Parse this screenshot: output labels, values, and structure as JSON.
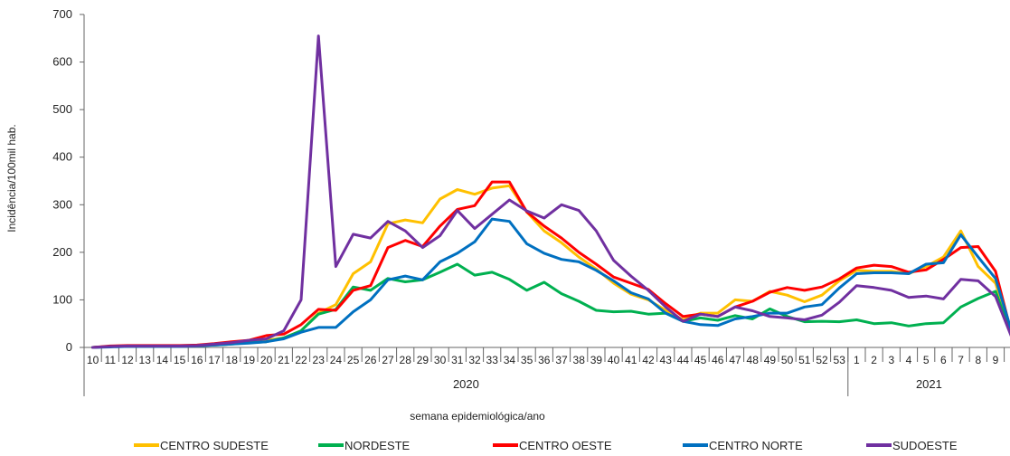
{
  "chart_data": {
    "type": "line",
    "ylabel": "Incidência/100mil hab.",
    "xlabel": "semana epidemiológica/ano",
    "ylim": [
      0,
      700
    ],
    "yticks": [
      0,
      100,
      200,
      300,
      400,
      500,
      600,
      700
    ],
    "grid": false,
    "legend_position": "bottom",
    "years": [
      {
        "label": "2020",
        "weeks": [
          "10",
          "11",
          "12",
          "13",
          "14",
          "15",
          "16",
          "17",
          "18",
          "19",
          "20",
          "21",
          "22",
          "23",
          "24",
          "25",
          "26",
          "27",
          "28",
          "29",
          "30",
          "31",
          "32",
          "33",
          "34",
          "35",
          "36",
          "37",
          "38",
          "39",
          "40",
          "41",
          "42",
          "43",
          "44",
          "45",
          "46",
          "47",
          "48",
          "49",
          "50",
          "51",
          "52",
          "53"
        ]
      },
      {
        "label": "2021",
        "weeks": [
          "1",
          "2",
          "3",
          "4",
          "5",
          "6",
          "7",
          "8",
          "9",
          "1"
        ]
      }
    ],
    "series": [
      {
        "name": "CENTRO SUDESTE",
        "color": "#FFC000",
        "values": [
          0,
          2,
          3,
          3,
          3,
          3,
          4,
          6,
          10,
          12,
          15,
          20,
          35,
          72,
          90,
          155,
          180,
          260,
          268,
          262,
          312,
          332,
          322,
          335,
          340,
          285,
          245,
          220,
          190,
          165,
          135,
          112,
          100,
          78,
          58,
          72,
          72,
          100,
          97,
          118,
          110,
          96,
          110,
          140,
          162,
          160,
          160,
          155,
          170,
          190,
          245,
          170,
          135,
          18
        ]
      },
      {
        "name": "NORDESTE",
        "color": "#00B050",
        "values": [
          0,
          2,
          3,
          3,
          3,
          3,
          4,
          5,
          7,
          10,
          12,
          20,
          35,
          70,
          80,
          127,
          120,
          145,
          138,
          142,
          158,
          175,
          152,
          158,
          143,
          120,
          137,
          113,
          97,
          78,
          75,
          76,
          70,
          72,
          55,
          62,
          57,
          67,
          60,
          81,
          65,
          54,
          55,
          54,
          58,
          50,
          52,
          45,
          50,
          52,
          85,
          103,
          118,
          18
        ]
      },
      {
        "name": "CENTRO OESTE",
        "color": "#FF0000",
        "values": [
          0,
          3,
          4,
          4,
          4,
          4,
          5,
          8,
          12,
          15,
          25,
          28,
          48,
          80,
          78,
          120,
          130,
          210,
          225,
          212,
          255,
          290,
          298,
          348,
          348,
          285,
          255,
          230,
          200,
          175,
          148,
          135,
          122,
          92,
          65,
          70,
          65,
          85,
          97,
          116,
          126,
          120,
          127,
          144,
          167,
          173,
          170,
          158,
          163,
          185,
          210,
          212,
          160,
          18
        ]
      },
      {
        "name": "CENTRO NORTE",
        "color": "#0070C0",
        "values": [
          0,
          1,
          2,
          2,
          2,
          2,
          3,
          5,
          7,
          9,
          12,
          18,
          32,
          42,
          42,
          75,
          100,
          142,
          150,
          142,
          180,
          198,
          222,
          270,
          265,
          218,
          198,
          185,
          180,
          162,
          140,
          115,
          102,
          72,
          55,
          48,
          46,
          60,
          65,
          72,
          72,
          85,
          90,
          125,
          155,
          157,
          157,
          155,
          175,
          178,
          237,
          190,
          145,
          25
        ]
      },
      {
        "name": "SUDOESTE",
        "color": "#7030A0",
        "values": [
          0,
          2,
          3,
          3,
          3,
          3,
          4,
          7,
          10,
          15,
          18,
          35,
          100,
          655,
          170,
          238,
          230,
          265,
          245,
          210,
          235,
          288,
          250,
          280,
          310,
          287,
          272,
          300,
          288,
          245,
          183,
          150,
          120,
          85,
          55,
          70,
          65,
          85,
          77,
          65,
          62,
          58,
          68,
          95,
          130,
          126,
          120,
          105,
          108,
          102,
          143,
          140,
          107,
          15
        ]
      }
    ]
  }
}
